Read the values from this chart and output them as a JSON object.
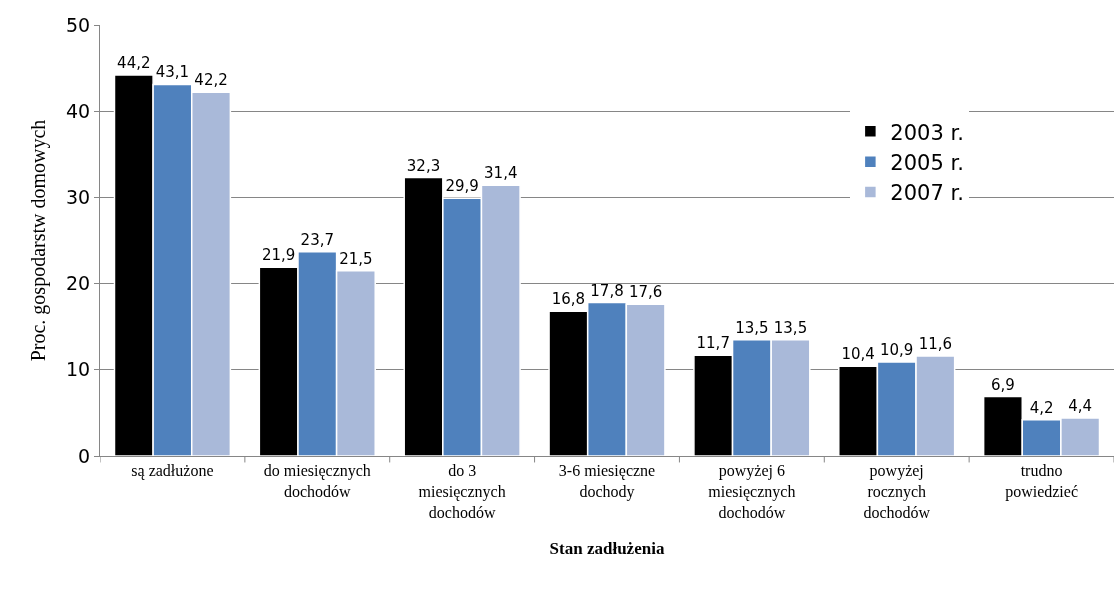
{
  "chart_data": {
    "type": "bar",
    "xlabel": "Stan zadłużenia",
    "ylabel": "Proc. gospodarstw domowych",
    "categories": [
      "są zadłużone",
      "do miesięcznych\ndochodów",
      "do 3\nmiesięcznych\ndochodów",
      "3-6 miesięczne\ndochody",
      "powyżej 6\nmiesięcznych\ndochodów",
      "powyżej\nrocznych\ndochodów",
      "trudno\npowiedzieć"
    ],
    "series": [
      {
        "name": "2003 r.",
        "color": "#000000",
        "values": [
          44.2,
          21.9,
          32.3,
          16.8,
          11.7,
          10.4,
          6.9
        ],
        "value_labels": [
          "44,2",
          "21,9",
          "32,3",
          "16,8",
          "11,7",
          "10,4",
          "6,9"
        ]
      },
      {
        "name": "2005 r.",
        "color": "#4f81bd",
        "values": [
          43.1,
          23.7,
          29.9,
          17.8,
          13.5,
          10.9,
          4.2
        ],
        "value_labels": [
          "43,1",
          "23,7",
          "29,9",
          "17,8",
          "13,5",
          "10,9",
          "4,2"
        ]
      },
      {
        "name": "2007 r.",
        "color": "#a9b9d9",
        "values": [
          42.2,
          21.5,
          31.4,
          17.6,
          13.5,
          11.6,
          4.4
        ],
        "value_labels": [
          "42,2",
          "21,5",
          "31,4",
          "17,6",
          "13,5",
          "11,6",
          "4,4"
        ]
      }
    ],
    "ylim": [
      0,
      50
    ],
    "yticks": [
      0,
      10,
      20,
      30,
      40,
      50
    ],
    "grid": "y",
    "legend": "top right"
  }
}
